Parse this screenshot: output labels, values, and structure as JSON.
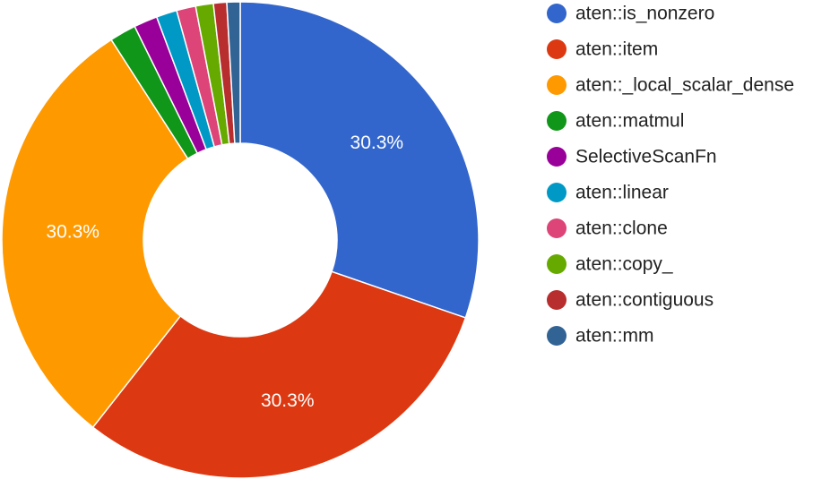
{
  "chart_data": {
    "type": "pie",
    "donut": true,
    "legend_position": "right",
    "labels": [
      "aten::is_nonzero",
      "aten::item",
      "aten::_local_scalar_dense",
      "aten::matmul",
      "SelectiveScanFn",
      "aten::linear",
      "aten::clone",
      "aten::copy_",
      "aten::contiguous",
      "aten::mm"
    ],
    "values": [
      30.3,
      30.3,
      30.3,
      1.8,
      1.6,
      1.4,
      1.3,
      1.2,
      0.9,
      0.9
    ],
    "colors": [
      "#3366cc",
      "#dc3912",
      "#ff9900",
      "#109618",
      "#990099",
      "#0099c6",
      "#dd4477",
      "#66aa00",
      "#b82e2e",
      "#316395"
    ],
    "slice_labels": [
      "30.3%",
      "30.3%",
      "30.3%",
      "",
      "",
      "",
      "",
      "",
      "",
      ""
    ]
  }
}
